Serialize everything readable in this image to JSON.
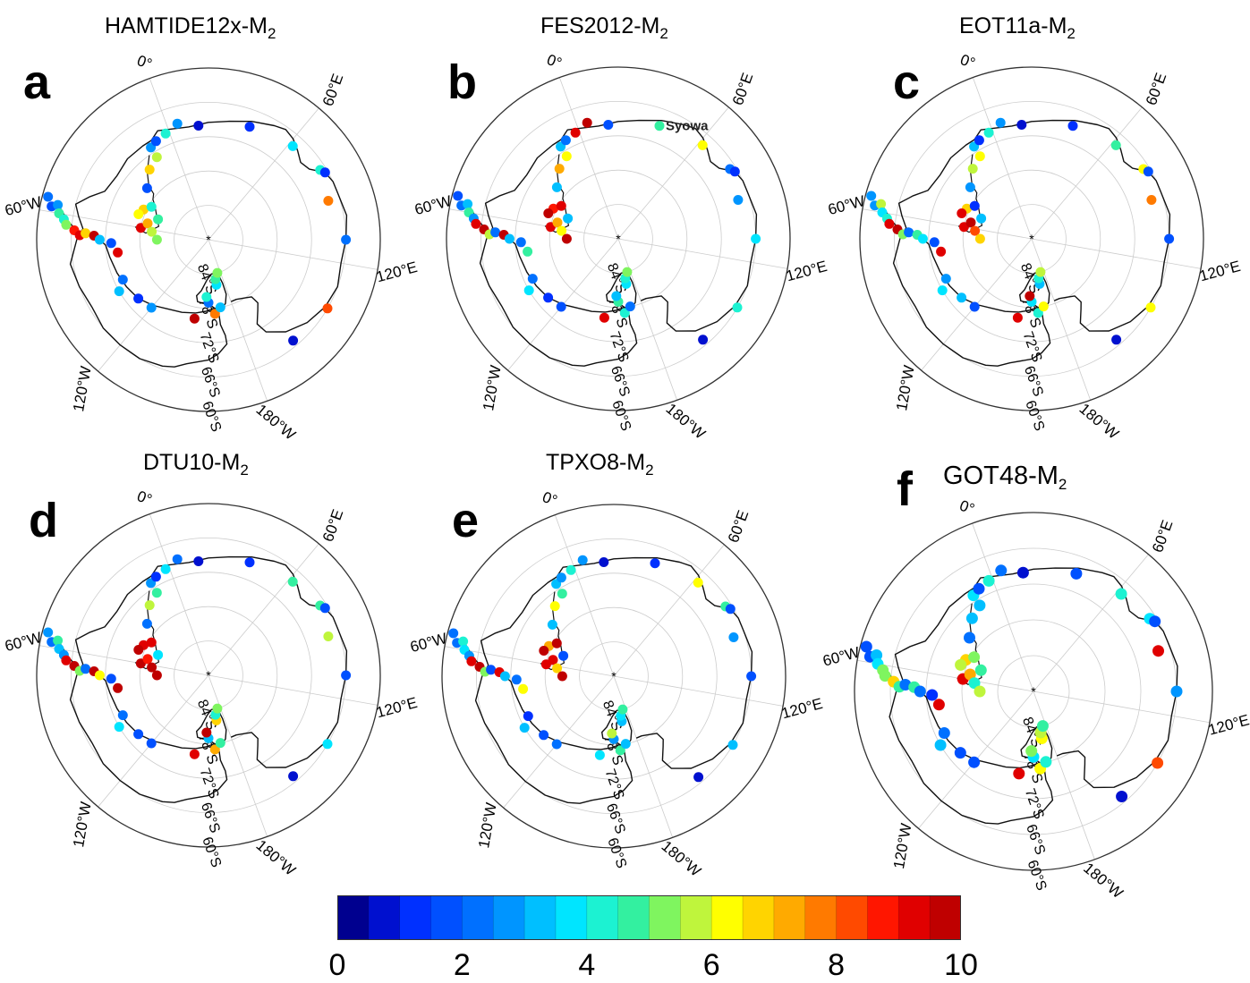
{
  "colormap": [
    "#00008f",
    "#0010cf",
    "#0030ff",
    "#0050ff",
    "#0070ff",
    "#0095ff",
    "#00bfff",
    "#00e5ff",
    "#1cf2d2",
    "#33f0a0",
    "#7ff55f",
    "#bff53c",
    "#ffff00",
    "#ffd400",
    "#ffaa00",
    "#ff7a00",
    "#ff4a00",
    "#ff1600",
    "#e00000",
    "#bf0000"
  ],
  "scale": {
    "min": 0,
    "max": 10,
    "ticks": [
      "0",
      "2",
      "4",
      "6",
      "8",
      "10"
    ]
  },
  "colors": {
    "ring": "#333333",
    "inner_ring": "#cccccc",
    "coast": "#111111"
  },
  "panels": [
    {
      "letter": "a",
      "title_main": "HAMTIDE12x-M",
      "title_sub": "2",
      "lon_labels": {
        "w60": "60°W",
        "e0": "0°",
        "w120": "120°W",
        "e60": "60°E",
        "w180": "180°W",
        "e120": "120°E"
      },
      "lat_labels": [
        "84°S",
        "78°S",
        "72°S",
        "66°S",
        "60°S"
      ]
    },
    {
      "letter": "b",
      "title_main": "FES2012-M",
      "title_sub": "2",
      "lon_labels": {
        "w60": "60°W",
        "e0": "0°",
        "w120": "120°W",
        "e60": "60°E",
        "w180": "180°W",
        "e120": "120°E"
      },
      "lat_labels": [
        "84°S",
        "78°S",
        "72°S",
        "66°S",
        "60°S"
      ],
      "station_label": "Syowa"
    },
    {
      "letter": "c",
      "title_main": "EOT11a-M",
      "title_sub": "2",
      "lon_labels": {
        "w60": "60°W",
        "e0": "0°",
        "w120": "120°W",
        "e60": "60°E",
        "w180": "180°W",
        "e120": "120°E"
      },
      "lat_labels": [
        "84°S",
        "78°S",
        "72°S",
        "66°S",
        "60°S"
      ]
    },
    {
      "letter": "d",
      "title_main": "DTU10-M",
      "title_sub": "2",
      "lon_labels": {
        "w60": "60°W",
        "e0": "0°",
        "w120": "120°W",
        "e60": "60°E",
        "w180": "180°W",
        "e120": "120°E"
      },
      "lat_labels": [
        "84°S",
        "78°S",
        "72°S",
        "66°S",
        "60°S"
      ]
    },
    {
      "letter": "e",
      "title_main": "TPXO8-M",
      "title_sub": "2",
      "lon_labels": {
        "w60": "60°W",
        "e0": "0°",
        "w120": "120°W",
        "e60": "60°E",
        "w180": "180°W",
        "e120": "120°E"
      },
      "lat_labels": [
        "84°S",
        "78°S",
        "72°S",
        "66°S",
        "60°S"
      ]
    },
    {
      "letter": "f",
      "title_main": "GOT48-M",
      "title_sub": "2",
      "lon_labels": {
        "w60": "60°W",
        "e0": "0°",
        "w120": "120°W",
        "e60": "60°E",
        "w180": "180°W",
        "e120": "120°E"
      },
      "lat_labels": [
        "84°S",
        "78°S",
        "72°S",
        "66°S",
        "60°S"
      ]
    }
  ],
  "stations": [
    [
      -62,
      -58
    ],
    [
      -63,
      -57
    ],
    [
      -63.5,
      -60
    ],
    [
      -64.5,
      -62
    ],
    [
      -65,
      -64
    ],
    [
      -66.5,
      -66
    ],
    [
      -67.5,
      -68
    ],
    [
      -68.5,
      -67
    ],
    [
      -70,
      -68
    ],
    [
      -71,
      -70
    ],
    [
      -73,
      -72
    ],
    [
      -74,
      -78
    ],
    [
      -73.5,
      -95
    ],
    [
      -72,
      -100
    ],
    [
      -74,
      -110
    ],
    [
      -74.5,
      -120
    ],
    [
      -76,
      -150
    ],
    [
      -77,
      -165
    ],
    [
      -78,
      -170
    ],
    [
      -79,
      -160
    ],
    [
      -80,
      -158
    ],
    [
      -82,
      -170
    ],
    [
      -83,
      -170
    ],
    [
      -84,
      -175
    ],
    [
      -78,
      -60
    ],
    [
      -77.5,
      -45
    ],
    [
      -77,
      -50
    ],
    [
      -78.5,
      -40
    ],
    [
      -79,
      -55
    ],
    [
      -80,
      -62
    ],
    [
      -80.5,
      -48
    ],
    [
      -81,
      -70
    ],
    [
      -76,
      -30
    ],
    [
      -74,
      -20
    ],
    [
      -73,
      -12
    ],
    [
      -71,
      -12
    ],
    [
      -70.5,
      -8
    ],
    [
      -70,
      -2
    ],
    [
      -69,
      5
    ],
    [
      -70,
      15
    ],
    [
      -69,
      40
    ],
    [
      -68,
      62
    ],
    [
      -67,
      78
    ],
    [
      -66.5,
      80
    ],
    [
      -68,
      92
    ],
    [
      -66,
      110
    ],
    [
      -66,
      140
    ],
    [
      -67,
      160
    ],
    [
      -61,
      -55
    ]
  ],
  "station_values": [
    [
      1.5,
      2.5,
      4.5,
      4.0,
      5.0,
      8.8,
      9.0,
      6.5,
      9.5,
      3.0,
      1.5,
      9.0,
      2.0,
      3.0,
      1.0,
      2.5,
      9.5,
      7.5,
      3.0,
      2.0,
      4.0,
      3.5,
      4.5,
      5.0,
      9.0,
      6.5,
      6.0,
      4.0,
      7.0,
      5.5,
      4.5,
      5.0,
      1.5,
      6.5,
      5.5,
      2.5,
      1.5,
      4.0,
      2.5,
      0.5,
      1.0,
      3.5,
      4.0,
      1.0,
      7.5,
      2.0,
      8.0,
      0.5,
      2.0
    ],
    [
      2.0,
      3.0,
      4.5,
      2.5,
      9.0,
      9.5,
      5.5,
      2.0,
      9.5,
      3.0,
      2.0,
      4.5,
      2.0,
      3.5,
      1.0,
      1.5,
      9.0,
      4.0,
      2.0,
      4.5,
      3.0,
      3.5,
      4.0,
      5.0,
      9.0,
      8.5,
      9.5,
      9.0,
      7.0,
      6.0,
      3.0,
      9.5,
      3.0,
      7.0,
      6.0,
      3.0,
      2.0,
      9.0,
      9.5,
      1.5,
      4.5,
      6.0,
      2.0,
      1.0,
      2.5,
      3.5,
      4.0,
      0.5,
      1.5
    ],
    [
      2.5,
      5.5,
      3.5,
      4.0,
      9.0,
      9.5,
      5.0,
      2.0,
      4.5,
      3.5,
      1.5,
      9.0,
      2.5,
      3.5,
      3.0,
      1.5,
      9.0,
      4.0,
      6.0,
      3.5,
      9.5,
      3.0,
      4.0,
      5.5,
      9.0,
      6.5,
      9.0,
      1.0,
      9.5,
      8.0,
      3.0,
      6.5,
      2.5,
      5.5,
      6.0,
      3.0,
      1.0,
      4.0,
      2.5,
      0.5,
      1.0,
      4.5,
      6.0,
      1.5,
      7.5,
      1.5,
      6.0,
      0.5,
      2.5
    ],
    [
      2.0,
      4.5,
      3.0,
      2.5,
      9.0,
      9.5,
      5.0,
      2.0,
      9.5,
      6.0,
      1.5,
      9.5,
      2.0,
      3.5,
      1.5,
      1.5,
      9.0,
      7.0,
      4.5,
      3.0,
      9.5,
      6.5,
      4.0,
      5.0,
      9.5,
      9.0,
      9.5,
      9.0,
      8.5,
      9.5,
      3.5,
      9.5,
      2.0,
      5.5,
      4.5,
      2.5,
      1.0,
      3.5,
      2.0,
      0.5,
      1.0,
      4.5,
      4.5,
      1.5,
      5.5,
      1.5,
      3.5,
      0.5,
      2.5
    ],
    [
      2.0,
      4.0,
      3.5,
      2.5,
      9.0,
      9.5,
      5.0,
      1.5,
      9.0,
      3.0,
      2.0,
      6.0,
      1.0,
      3.0,
      1.5,
      2.0,
      3.5,
      4.5,
      3.0,
      2.5,
      5.5,
      3.0,
      3.5,
      4.5,
      9.0,
      7.0,
      9.5,
      9.5,
      9.0,
      6.5,
      1.5,
      9.5,
      3.0,
      6.0,
      4.5,
      3.0,
      2.5,
      4.0,
      2.5,
      0.5,
      1.0,
      6.0,
      4.5,
      1.5,
      2.5,
      1.5,
      3.0,
      0.5,
      2.0
    ],
    [
      1.5,
      3.0,
      3.5,
      5.0,
      5.0,
      6.5,
      4.5,
      2.0,
      4.5,
      2.0,
      1.0,
      9.0,
      2.0,
      3.0,
      1.5,
      1.5,
      9.0,
      6.0,
      4.0,
      3.5,
      5.0,
      6.0,
      5.5,
      4.5,
      9.0,
      6.5,
      5.5,
      5.0,
      7.0,
      4.0,
      4.5,
      5.5,
      2.0,
      3.0,
      3.0,
      3.5,
      1.5,
      4.0,
      2.0,
      0.5,
      1.5,
      4.0,
      3.5,
      1.5,
      9.0,
      2.5,
      8.0,
      0.5,
      1.5
    ]
  ]
}
